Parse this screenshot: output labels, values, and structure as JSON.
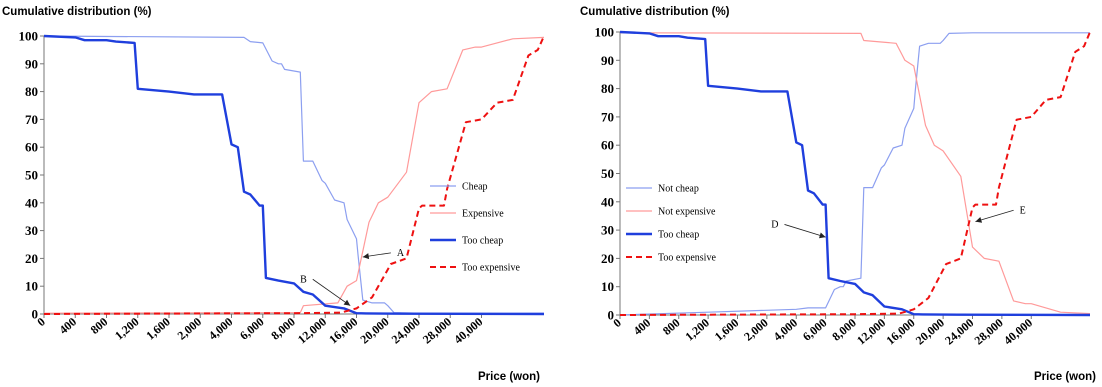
{
  "chart_data": [
    {
      "type": "line",
      "ylabel": "Cumulative distribution (%)",
      "xlabel": "Price (won)",
      "ylim": [
        0,
        100
      ],
      "yticks": [
        0,
        10,
        20,
        30,
        40,
        50,
        60,
        70,
        80,
        90,
        100
      ],
      "x_tick_labels": [
        "0",
        "400",
        "800",
        "1,200",
        "1,600",
        "2,000",
        "4,000",
        "6,000",
        "8,000",
        "12,000",
        "16,000",
        "20,000",
        "24,000",
        "28,000",
        "40,000"
      ],
      "x_max_index": 16,
      "grid": false,
      "legend_position": "right",
      "series": [
        {
          "name": "Cheap",
          "color": "#8c9ff0",
          "width": 1.2,
          "dashed": false,
          "x": [
            0,
            6.4,
            6.6,
            7.0,
            7.3,
            7.5,
            7.6,
            7.7,
            8.2,
            8.3,
            8.6,
            8.9,
            9.0,
            9.3,
            9.6,
            9.7,
            10.0,
            10.05,
            10.2,
            10.5,
            10.7,
            10.9,
            11.0,
            11.2,
            12.0,
            16
          ],
          "y": [
            100,
            99.5,
            98,
            97.5,
            91,
            90,
            90,
            88,
            87,
            55,
            55,
            48,
            47,
            41,
            40,
            34,
            27,
            21,
            5,
            4,
            4,
            4,
            3,
            0.5,
            0.3,
            0.3
          ]
        },
        {
          "name": "Expensive",
          "color": "#ff9a9a",
          "width": 1.2,
          "dashed": false,
          "x": [
            0,
            8.2,
            8.3,
            9.4,
            9.6,
            9.7,
            10.0,
            10.4,
            10.7,
            11.0,
            11.6,
            12.0,
            12.4,
            12.9,
            13.4,
            13.8,
            14.0,
            15.0,
            16
          ],
          "y": [
            0.3,
            0.5,
            3,
            4,
            8,
            10,
            12,
            33,
            40,
            42,
            51,
            76,
            80,
            81,
            95,
            96,
            96,
            99,
            99.5
          ]
        },
        {
          "name": "Too cheap",
          "color": "#1f3fdd",
          "width": 2.4,
          "dashed": false,
          "x": [
            0,
            1.0,
            1.3,
            2.0,
            2.3,
            2.9,
            3.0,
            4.0,
            4.8,
            5.0,
            5.3,
            5.5,
            5.7,
            6.0,
            6.2,
            6.4,
            6.6,
            6.9,
            7.0,
            7.1,
            7.5,
            8.0,
            8.3,
            8.6,
            9.0,
            9.6,
            10.0,
            10.3,
            11.5,
            16
          ],
          "y": [
            100,
            99.5,
            98.5,
            98.5,
            98,
            97.5,
            81,
            80,
            79,
            79,
            79,
            79,
            79,
            61,
            60,
            44,
            43,
            39,
            39,
            13,
            12,
            11,
            8,
            7,
            3,
            2,
            0.3,
            0.2,
            0.1,
            0
          ]
        },
        {
          "name": "Too expensive",
          "color": "#ee1111",
          "width": 2.0,
          "dashed": true,
          "x": [
            0,
            8.0,
            9.5,
            10.0,
            10.5,
            11.1,
            11.6,
            12.0,
            12.1,
            12.8,
            12.9,
            13.5,
            14.0,
            14.5,
            15.0,
            15.5,
            15.8,
            16
          ],
          "y": [
            0,
            0.3,
            0.5,
            2,
            6,
            18,
            20,
            38,
            39,
            39,
            45,
            69,
            70,
            76,
            77,
            93,
            95,
            100
          ]
        }
      ],
      "annotations": [
        {
          "label": "A",
          "from": [
            11.1,
            22
          ],
          "to": [
            10.2,
            20.5
          ]
        },
        {
          "label": "B",
          "from": [
            8.6,
            12.5
          ],
          "to": [
            9.8,
            3
          ]
        }
      ]
    },
    {
      "type": "line",
      "ylabel": "Cumulative distribution (%)",
      "xlabel": "Price (won)",
      "ylim": [
        0,
        100
      ],
      "yticks": [
        0,
        10,
        20,
        30,
        40,
        50,
        60,
        70,
        80,
        90,
        100
      ],
      "x_tick_labels": [
        "0",
        "400",
        "800",
        "1,200",
        "1,600",
        "2,000",
        "4,000",
        "6,000",
        "8,000",
        "12,000",
        "16,000",
        "20,000",
        "24,000",
        "28,000",
        "40,000"
      ],
      "x_max_index": 16,
      "grid": false,
      "legend_position": "left",
      "series": [
        {
          "name": "Not cheap",
          "color": "#8c9ff0",
          "width": 1.2,
          "dashed": false,
          "x": [
            0,
            3.0,
            6.0,
            6.4,
            6.6,
            7.0,
            7.3,
            7.5,
            7.6,
            7.7,
            8.2,
            8.3,
            8.6,
            8.9,
            9.0,
            9.3,
            9.6,
            9.7,
            10.0,
            10.05,
            10.2,
            10.5,
            10.7,
            10.9,
            11.0,
            11.2,
            12.0,
            16
          ],
          "y": [
            0,
            1,
            2,
            2.5,
            2.5,
            2.5,
            9,
            10,
            10,
            12,
            13,
            45,
            45,
            52,
            53,
            59,
            60,
            66,
            73,
            79,
            95,
            96,
            96,
            96,
            97,
            99.5,
            99.7,
            99.7
          ]
        },
        {
          "name": "Not expensive",
          "color": "#ff9a9a",
          "width": 1.2,
          "dashed": false,
          "x": [
            0,
            8.2,
            8.3,
            9.4,
            9.6,
            9.7,
            10.0,
            10.4,
            10.7,
            11.0,
            11.6,
            12.0,
            12.4,
            12.9,
            13.4,
            13.8,
            14.0,
            15.0,
            16
          ],
          "y": [
            99.7,
            99.5,
            97,
            96,
            92,
            90,
            88,
            67,
            60,
            58,
            49,
            24,
            20,
            19,
            5,
            4,
            4,
            1,
            0.5
          ]
        },
        {
          "name": "Too cheap",
          "color": "#1f3fdd",
          "width": 2.4,
          "dashed": false,
          "x": [
            0,
            1.0,
            1.3,
            2.0,
            2.3,
            2.9,
            3.0,
            4.0,
            4.8,
            5.0,
            5.3,
            5.5,
            5.7,
            6.0,
            6.2,
            6.4,
            6.6,
            6.9,
            7.0,
            7.1,
            7.5,
            8.0,
            8.3,
            8.6,
            9.0,
            9.6,
            10.0,
            10.3,
            11.5,
            16
          ],
          "y": [
            100,
            99.5,
            98.5,
            98.5,
            98,
            97.5,
            81,
            80,
            79,
            79,
            79,
            79,
            79,
            61,
            60,
            44,
            43,
            39,
            39,
            13,
            12,
            11,
            8,
            7,
            3,
            2,
            0.3,
            0.2,
            0.1,
            0
          ]
        },
        {
          "name": "Too expensive",
          "color": "#ee1111",
          "width": 2.0,
          "dashed": true,
          "x": [
            0,
            8.0,
            9.5,
            10.0,
            10.5,
            11.1,
            11.6,
            12.0,
            12.1,
            12.8,
            12.9,
            13.5,
            14.0,
            14.5,
            15.0,
            15.5,
            15.8,
            16
          ],
          "y": [
            0,
            0.3,
            0.5,
            2,
            6,
            18,
            20,
            38,
            39,
            39,
            45,
            69,
            70,
            76,
            77,
            93,
            95,
            100
          ]
        }
      ],
      "annotations": [
        {
          "label": "D",
          "from": [
            5.6,
            32
          ],
          "to": [
            7.0,
            27.5
          ]
        },
        {
          "label": "E",
          "from": [
            13.4,
            37
          ],
          "to": [
            12.1,
            33
          ]
        }
      ]
    }
  ]
}
